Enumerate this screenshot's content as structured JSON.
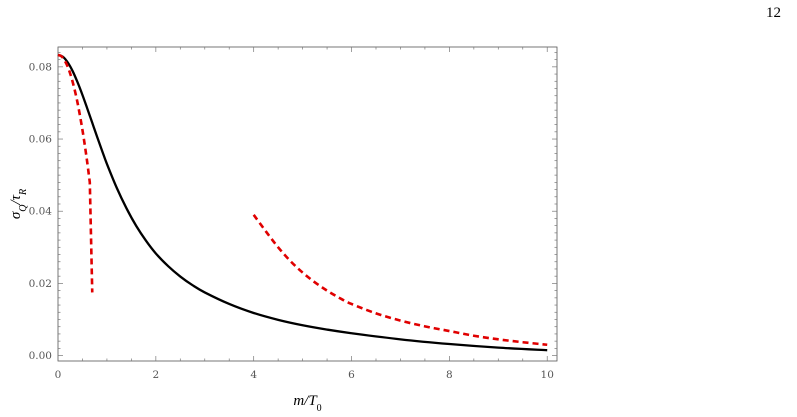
{
  "page": {
    "number": "12"
  },
  "chart_data": {
    "type": "line",
    "xlabel": "m/T",
    "xlabel_sub": "0",
    "ylabel": "σ",
    "ylabel_sub": "Q",
    "ylabel_mid": "/τ",
    "ylabel_sub2": "R",
    "xlim": [
      0,
      10.2
    ],
    "ylim": [
      -0.0015,
      0.0855
    ],
    "x_ticks": [
      0,
      2,
      4,
      6,
      8,
      10
    ],
    "x_tick_labels": [
      "0",
      "2",
      "4",
      "6",
      "8",
      "10"
    ],
    "y_ticks": [
      0.0,
      0.02,
      0.04,
      0.06,
      0.08
    ],
    "y_tick_labels": [
      "0.00",
      "0.02",
      "0.04",
      "0.06",
      "0.08"
    ],
    "grid": false,
    "series": [
      {
        "style": "solid",
        "color": "#000000",
        "x": [
          0.0,
          0.1,
          0.2,
          0.3,
          0.4,
          0.5,
          0.6,
          0.7,
          0.8,
          0.9,
          1.0,
          1.2,
          1.4,
          1.6,
          1.8,
          2.0,
          2.25,
          2.5,
          2.75,
          3.0,
          3.5,
          4.0,
          4.5,
          5.0,
          5.5,
          6.0,
          7.0,
          8.0,
          9.0,
          10.0
        ],
        "y": [
          0.0833,
          0.0828,
          0.0812,
          0.0788,
          0.0757,
          0.0722,
          0.0684,
          0.0645,
          0.0606,
          0.0568,
          0.0531,
          0.0465,
          0.0408,
          0.0359,
          0.0318,
          0.0283,
          0.0248,
          0.0219,
          0.0195,
          0.0175,
          0.0143,
          0.0118,
          0.0099,
          0.0084,
          0.0072,
          0.0062,
          0.0045,
          0.0032,
          0.0022,
          0.0015
        ]
      },
      {
        "style": "dashed",
        "color": "#e00000",
        "x": [
          0.0,
          0.05,
          0.1,
          0.15,
          0.2,
          0.25,
          0.3,
          0.35,
          0.4,
          0.45,
          0.5,
          0.55,
          0.6,
          0.65,
          0.7
        ],
        "y": [
          0.0833,
          0.0831,
          0.0825,
          0.0814,
          0.08,
          0.0781,
          0.0758,
          0.0731,
          0.07,
          0.0664,
          0.0625,
          0.0581,
          0.0533,
          0.048,
          0.0175
        ]
      },
      {
        "style": "dashed",
        "color": "#e00000",
        "x": [
          4.0,
          4.25,
          4.5,
          4.75,
          5.0,
          5.25,
          5.5,
          5.75,
          6.0,
          6.5,
          7.0,
          7.5,
          8.0,
          8.5,
          9.0,
          9.5,
          10.0
        ],
        "y": [
          0.039,
          0.0344,
          0.03,
          0.0262,
          0.023,
          0.0203,
          0.018,
          0.016,
          0.0143,
          0.0117,
          0.0097,
          0.0081,
          0.0068,
          0.0055,
          0.0045,
          0.0037,
          0.003
        ]
      }
    ]
  }
}
